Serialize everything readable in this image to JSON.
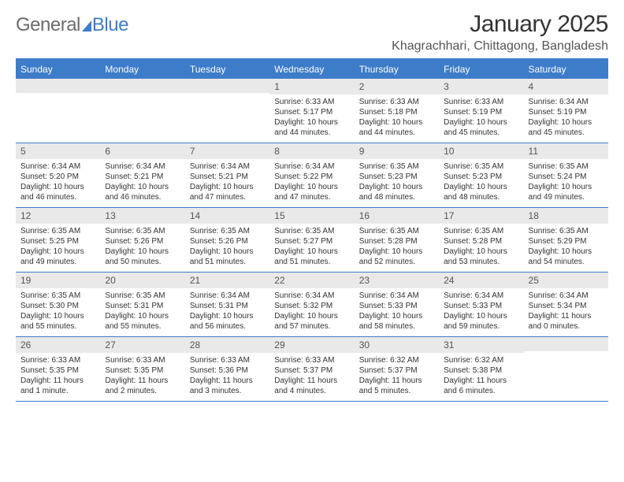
{
  "brand": {
    "word1": "General",
    "word2": "Blue"
  },
  "title": "January 2025",
  "location": "Khagrachhari, Chittagong, Bangladesh",
  "colors": {
    "accent": "#3d7cc9",
    "headerText": "#ffffff",
    "daynumBg": "#e9e9e9",
    "text": "#333333",
    "muted": "#6b6b6b"
  },
  "weekdays": [
    "Sunday",
    "Monday",
    "Tuesday",
    "Wednesday",
    "Thursday",
    "Friday",
    "Saturday"
  ],
  "weeks": [
    [
      {
        "n": "",
        "sr": "",
        "ss": "",
        "dl": ""
      },
      {
        "n": "",
        "sr": "",
        "ss": "",
        "dl": ""
      },
      {
        "n": "",
        "sr": "",
        "ss": "",
        "dl": ""
      },
      {
        "n": "1",
        "sr": "Sunrise: 6:33 AM",
        "ss": "Sunset: 5:17 PM",
        "dl": "Daylight: 10 hours and 44 minutes."
      },
      {
        "n": "2",
        "sr": "Sunrise: 6:33 AM",
        "ss": "Sunset: 5:18 PM",
        "dl": "Daylight: 10 hours and 44 minutes."
      },
      {
        "n": "3",
        "sr": "Sunrise: 6:33 AM",
        "ss": "Sunset: 5:19 PM",
        "dl": "Daylight: 10 hours and 45 minutes."
      },
      {
        "n": "4",
        "sr": "Sunrise: 6:34 AM",
        "ss": "Sunset: 5:19 PM",
        "dl": "Daylight: 10 hours and 45 minutes."
      }
    ],
    [
      {
        "n": "5",
        "sr": "Sunrise: 6:34 AM",
        "ss": "Sunset: 5:20 PM",
        "dl": "Daylight: 10 hours and 46 minutes."
      },
      {
        "n": "6",
        "sr": "Sunrise: 6:34 AM",
        "ss": "Sunset: 5:21 PM",
        "dl": "Daylight: 10 hours and 46 minutes."
      },
      {
        "n": "7",
        "sr": "Sunrise: 6:34 AM",
        "ss": "Sunset: 5:21 PM",
        "dl": "Daylight: 10 hours and 47 minutes."
      },
      {
        "n": "8",
        "sr": "Sunrise: 6:34 AM",
        "ss": "Sunset: 5:22 PM",
        "dl": "Daylight: 10 hours and 47 minutes."
      },
      {
        "n": "9",
        "sr": "Sunrise: 6:35 AM",
        "ss": "Sunset: 5:23 PM",
        "dl": "Daylight: 10 hours and 48 minutes."
      },
      {
        "n": "10",
        "sr": "Sunrise: 6:35 AM",
        "ss": "Sunset: 5:23 PM",
        "dl": "Daylight: 10 hours and 48 minutes."
      },
      {
        "n": "11",
        "sr": "Sunrise: 6:35 AM",
        "ss": "Sunset: 5:24 PM",
        "dl": "Daylight: 10 hours and 49 minutes."
      }
    ],
    [
      {
        "n": "12",
        "sr": "Sunrise: 6:35 AM",
        "ss": "Sunset: 5:25 PM",
        "dl": "Daylight: 10 hours and 49 minutes."
      },
      {
        "n": "13",
        "sr": "Sunrise: 6:35 AM",
        "ss": "Sunset: 5:26 PM",
        "dl": "Daylight: 10 hours and 50 minutes."
      },
      {
        "n": "14",
        "sr": "Sunrise: 6:35 AM",
        "ss": "Sunset: 5:26 PM",
        "dl": "Daylight: 10 hours and 51 minutes."
      },
      {
        "n": "15",
        "sr": "Sunrise: 6:35 AM",
        "ss": "Sunset: 5:27 PM",
        "dl": "Daylight: 10 hours and 51 minutes."
      },
      {
        "n": "16",
        "sr": "Sunrise: 6:35 AM",
        "ss": "Sunset: 5:28 PM",
        "dl": "Daylight: 10 hours and 52 minutes."
      },
      {
        "n": "17",
        "sr": "Sunrise: 6:35 AM",
        "ss": "Sunset: 5:28 PM",
        "dl": "Daylight: 10 hours and 53 minutes."
      },
      {
        "n": "18",
        "sr": "Sunrise: 6:35 AM",
        "ss": "Sunset: 5:29 PM",
        "dl": "Daylight: 10 hours and 54 minutes."
      }
    ],
    [
      {
        "n": "19",
        "sr": "Sunrise: 6:35 AM",
        "ss": "Sunset: 5:30 PM",
        "dl": "Daylight: 10 hours and 55 minutes."
      },
      {
        "n": "20",
        "sr": "Sunrise: 6:35 AM",
        "ss": "Sunset: 5:31 PM",
        "dl": "Daylight: 10 hours and 55 minutes."
      },
      {
        "n": "21",
        "sr": "Sunrise: 6:34 AM",
        "ss": "Sunset: 5:31 PM",
        "dl": "Daylight: 10 hours and 56 minutes."
      },
      {
        "n": "22",
        "sr": "Sunrise: 6:34 AM",
        "ss": "Sunset: 5:32 PM",
        "dl": "Daylight: 10 hours and 57 minutes."
      },
      {
        "n": "23",
        "sr": "Sunrise: 6:34 AM",
        "ss": "Sunset: 5:33 PM",
        "dl": "Daylight: 10 hours and 58 minutes."
      },
      {
        "n": "24",
        "sr": "Sunrise: 6:34 AM",
        "ss": "Sunset: 5:33 PM",
        "dl": "Daylight: 10 hours and 59 minutes."
      },
      {
        "n": "25",
        "sr": "Sunrise: 6:34 AM",
        "ss": "Sunset: 5:34 PM",
        "dl": "Daylight: 11 hours and 0 minutes."
      }
    ],
    [
      {
        "n": "26",
        "sr": "Sunrise: 6:33 AM",
        "ss": "Sunset: 5:35 PM",
        "dl": "Daylight: 11 hours and 1 minute."
      },
      {
        "n": "27",
        "sr": "Sunrise: 6:33 AM",
        "ss": "Sunset: 5:35 PM",
        "dl": "Daylight: 11 hours and 2 minutes."
      },
      {
        "n": "28",
        "sr": "Sunrise: 6:33 AM",
        "ss": "Sunset: 5:36 PM",
        "dl": "Daylight: 11 hours and 3 minutes."
      },
      {
        "n": "29",
        "sr": "Sunrise: 6:33 AM",
        "ss": "Sunset: 5:37 PM",
        "dl": "Daylight: 11 hours and 4 minutes."
      },
      {
        "n": "30",
        "sr": "Sunrise: 6:32 AM",
        "ss": "Sunset: 5:37 PM",
        "dl": "Daylight: 11 hours and 5 minutes."
      },
      {
        "n": "31",
        "sr": "Sunrise: 6:32 AM",
        "ss": "Sunset: 5:38 PM",
        "dl": "Daylight: 11 hours and 6 minutes."
      },
      {
        "n": "",
        "sr": "",
        "ss": "",
        "dl": ""
      }
    ]
  ]
}
